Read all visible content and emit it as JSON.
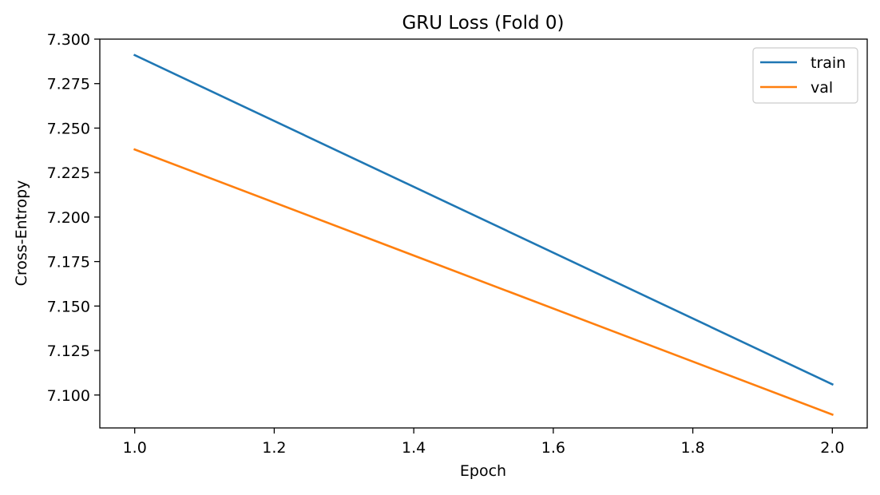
{
  "chart_data": {
    "type": "line",
    "title": "GRU Loss (Fold 0)",
    "xlabel": "Epoch",
    "ylabel": "Cross-Entropy",
    "xlim": [
      0.95,
      2.05
    ],
    "ylim": [
      7.0815,
      7.3
    ],
    "xticks": [
      1.0,
      1.2,
      1.4,
      1.6,
      1.8,
      2.0
    ],
    "xtick_labels": [
      "1.0",
      "1.2",
      "1.4",
      "1.6",
      "1.8",
      "2.0"
    ],
    "yticks": [
      7.1,
      7.125,
      7.15,
      7.175,
      7.2,
      7.225,
      7.25,
      7.275,
      7.3
    ],
    "ytick_labels": [
      "7.100",
      "7.125",
      "7.150",
      "7.175",
      "7.200",
      "7.225",
      "7.250",
      "7.275",
      "7.300"
    ],
    "grid": false,
    "legend_position": "top-right",
    "series": [
      {
        "name": "train",
        "color": "#1f77b4",
        "x": [
          1.0,
          2.0
        ],
        "y": [
          7.291,
          7.106
        ]
      },
      {
        "name": "val",
        "color": "#ff7f0e",
        "x": [
          1.0,
          2.0
        ],
        "y": [
          7.238,
          7.089
        ]
      }
    ]
  }
}
